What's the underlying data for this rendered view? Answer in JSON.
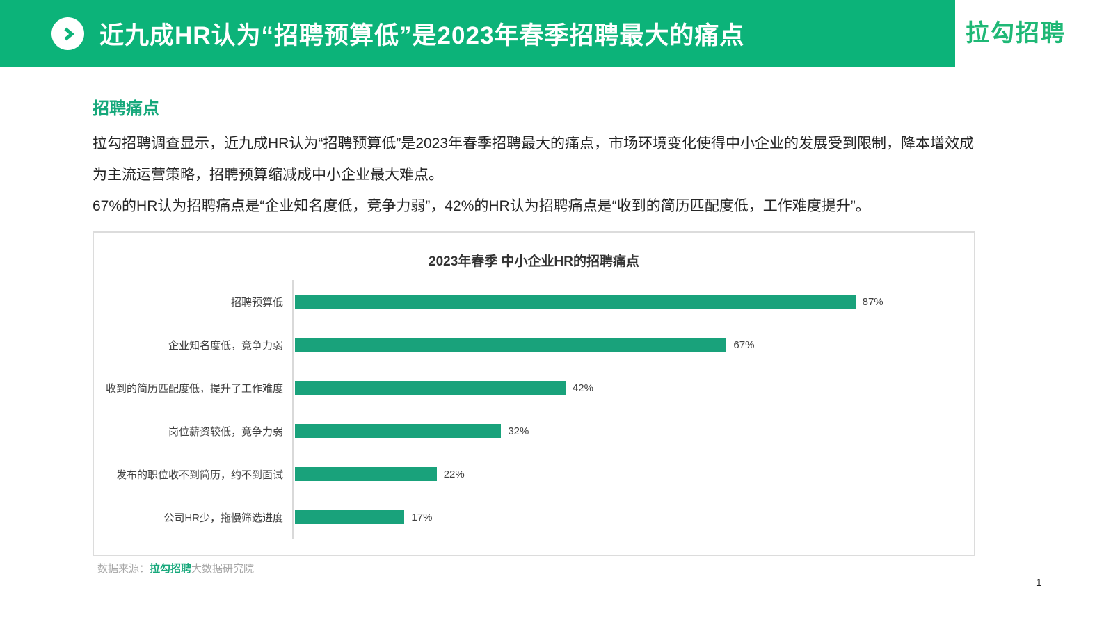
{
  "header": {
    "title": "近九成HR认为“招聘预算低”是2023年春季招聘最大的痛点",
    "logo": "拉勾招聘",
    "accent_green": "#0cb379"
  },
  "section": {
    "heading": "招聘痛点",
    "paragraph1": "拉勾招聘调查显示，近九成HR认为“招聘预算低”是2023年春季招聘最大的痛点，市场环境变化使得中小企业的发展受到限制，降本增效成为主流运营策略，招聘预算缩减成中小企业最大难点。",
    "paragraph2": "67%的HR认为招聘痛点是“企业知名度低，竞争力弱”，42%的HR认为招聘痛点是“收到的简历匹配度低，工作难度提升”。"
  },
  "chart_data": {
    "type": "bar",
    "orientation": "horizontal",
    "title": "2023年春季 中小企业HR的招聘痛点",
    "categories": [
      "招聘预算低",
      "企业知名度低，竞争力弱",
      "收到的简历匹配度低，提升了工作难度",
      "岗位薪资较低，竞争力弱",
      "发布的职位收不到简历，约不到面试",
      "公司HR少，拖慢筛选进度"
    ],
    "values": [
      87,
      67,
      42,
      32,
      22,
      17
    ],
    "value_labels": [
      "87%",
      "67%",
      "42%",
      "32%",
      "22%",
      "17%"
    ],
    "unit": "%",
    "xlim": [
      0,
      100
    ],
    "grid": false,
    "legend": false,
    "bar_color": "#19a27b"
  },
  "footer": {
    "source_prefix": "数据来源：",
    "source_brand": "拉勾招聘",
    "source_suffix": "大数据研究院",
    "page_number": "1"
  }
}
